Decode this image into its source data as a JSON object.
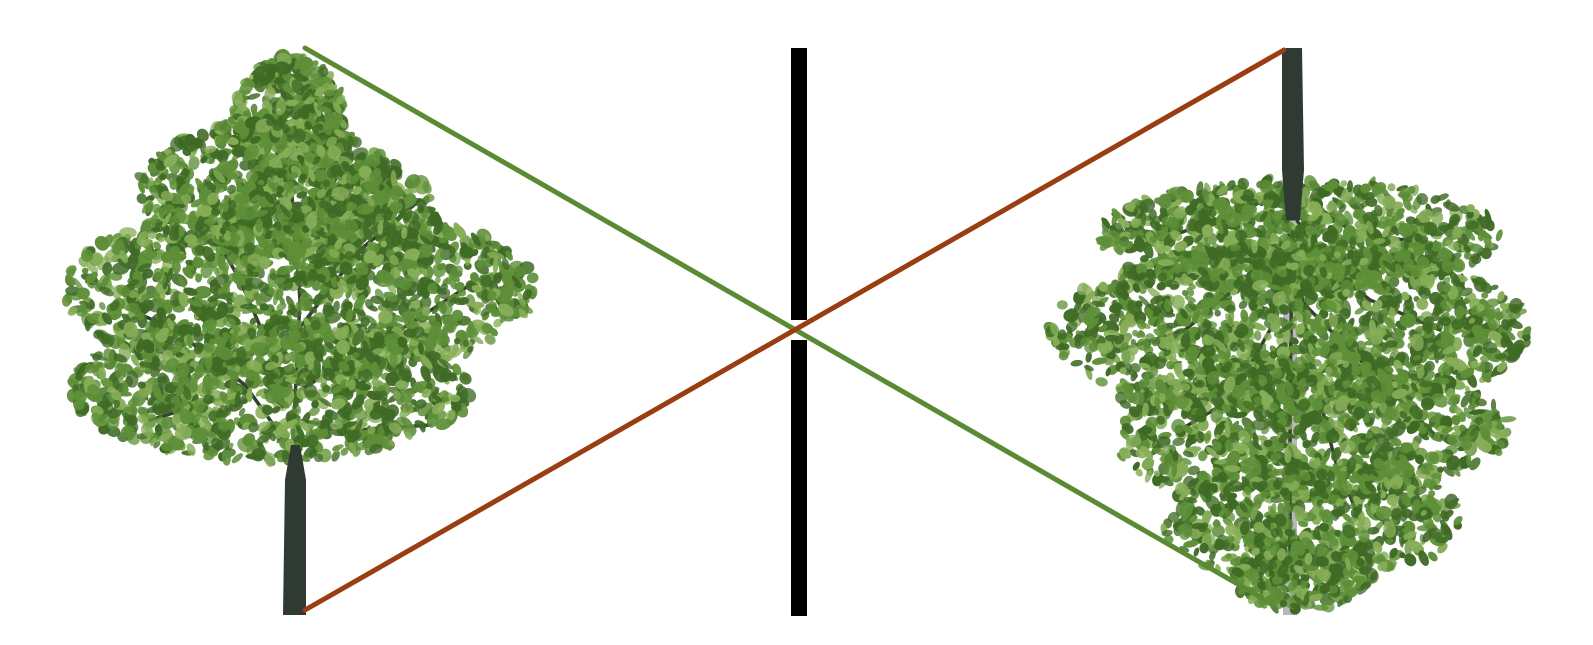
{
  "diagram": {
    "subject": "pinhole-camera-image-inversion",
    "objects": [
      {
        "id": "upright-tree",
        "orientation": "upright"
      },
      {
        "id": "inverted-tree",
        "orientation": "inverted"
      }
    ],
    "barrier": {
      "has_aperture": true
    },
    "rays": [
      {
        "id": "ray-top-to-bottom",
        "color": "#5a8a32",
        "from": "upright-tree-top",
        "to": "inverted-tree-top"
      },
      {
        "id": "ray-bottom-to-top",
        "color": "#9a3d12",
        "from": "upright-tree-base",
        "to": "inverted-tree-base"
      }
    ],
    "colors": {
      "background": "#ffffff",
      "foliage_dark": "#3f6a25",
      "foliage_mid": "#5e8f38",
      "foliage_light": "#86ad57",
      "trunk": "#2f3a33",
      "barrier": "#000000",
      "pole": "#b8b8b8"
    }
  }
}
